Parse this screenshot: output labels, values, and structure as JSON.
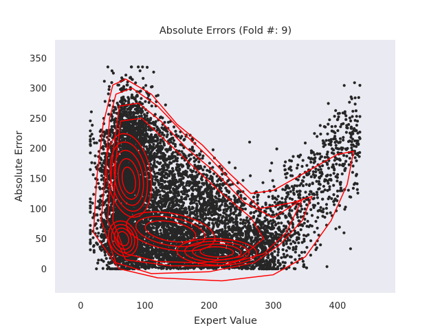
{
  "chart_data": {
    "type": "scatter",
    "title": "Absolute Errors (Fold #: 9)",
    "xlabel": "Expert Value",
    "ylabel": "Absolute Error",
    "xlim": [
      -40,
      490
    ],
    "ylim": [
      -40,
      380
    ],
    "x_ticks": [
      0,
      100,
      200,
      300,
      400
    ],
    "y_ticks": [
      0,
      50,
      100,
      150,
      200,
      250,
      300,
      350
    ],
    "grid": false,
    "background_color": "#eaeaf2",
    "point_color": "#262626",
    "contour_color": "#ff0000",
    "overlay": "kde-contours",
    "approx_points": 9000,
    "density_clusters": [
      {
        "x_center": 75,
        "y_center": 155,
        "x_spread": 18,
        "y_spread": 28
      },
      {
        "x_center": 65,
        "y_center": 50,
        "x_spread": 14,
        "y_spread": 16
      },
      {
        "x_center": 210,
        "y_center": 28,
        "x_spread": 35,
        "y_spread": 12
      },
      {
        "x_center": 140,
        "y_center": 70,
        "x_spread": 40,
        "y_spread": 25
      }
    ],
    "data_region": {
      "x_range": [
        15,
        435
      ],
      "y_range": [
        0,
        335
      ]
    }
  }
}
